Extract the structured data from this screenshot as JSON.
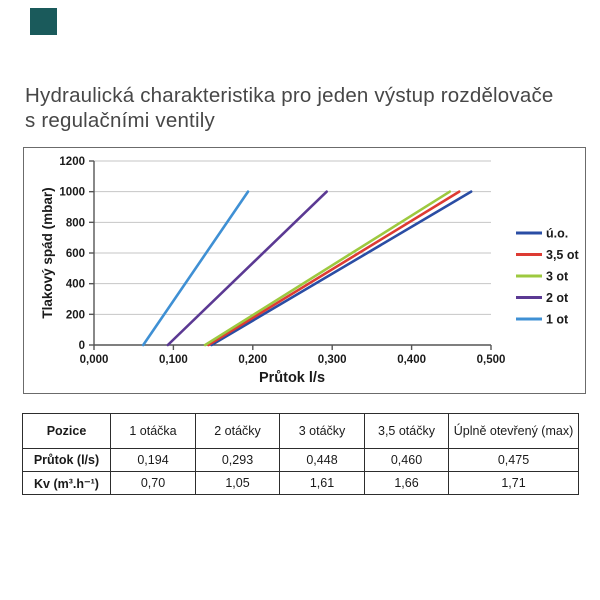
{
  "page": {
    "title": "Hydraulická charakteristika pro jeden výstup rozdělovače\ns regulačními ventily",
    "corner_square_color": "#1a5a5b"
  },
  "chart_data": {
    "type": "line",
    "title": "",
    "xlabel": "Průtok l/s",
    "ylabel": "Tlakový spád (mbar)",
    "xlim": [
      0,
      0.5
    ],
    "ylim": [
      0,
      1200
    ],
    "x_tick_labels": [
      "0,000",
      "0,100",
      "0,200",
      "0,300",
      "0,400",
      "0,500"
    ],
    "x_tick_values": [
      0,
      0.1,
      0.2,
      0.3,
      0.4,
      0.5
    ],
    "y_tick_values": [
      0,
      200,
      400,
      600,
      800,
      1000,
      1200
    ],
    "grid": "horizontal",
    "legend_position": "right",
    "grid_color": "#c6c6c6",
    "axis_color": "#555555",
    "label_color": "#1a1a1a",
    "series": [
      {
        "name": "ú.o.",
        "color": "#2a4da4",
        "points": [
          [
            0.148,
            0
          ],
          [
            0.475,
            1000
          ]
        ]
      },
      {
        "name": "3,5 ot",
        "color": "#dd3b33",
        "points": [
          [
            0.144,
            0
          ],
          [
            0.46,
            1000
          ]
        ]
      },
      {
        "name": "3 ot",
        "color": "#9dc93f",
        "points": [
          [
            0.14,
            0
          ],
          [
            0.448,
            1000
          ]
        ]
      },
      {
        "name": "2 ot",
        "color": "#5b3993",
        "points": [
          [
            0.093,
            0
          ],
          [
            0.293,
            1000
          ]
        ]
      },
      {
        "name": "1 ot",
        "color": "#3f90d4",
        "points": [
          [
            0.062,
            0
          ],
          [
            0.194,
            1000
          ]
        ]
      }
    ]
  },
  "table": {
    "columns": [
      "Pozice",
      "1 otáčka",
      "2 otáčky",
      "3 otáčky",
      "3,5 otáčky",
      "Úplně otevřený (max)"
    ],
    "rows": [
      {
        "label": "Průtok (l/s)",
        "values": [
          "0,194",
          "0,293",
          "0,448",
          "0,460",
          "0,475"
        ]
      },
      {
        "label": "Kv (m³.h⁻¹)",
        "values": [
          "0,70",
          "1,05",
          "1,61",
          "1,66",
          "1,71"
        ]
      }
    ]
  }
}
